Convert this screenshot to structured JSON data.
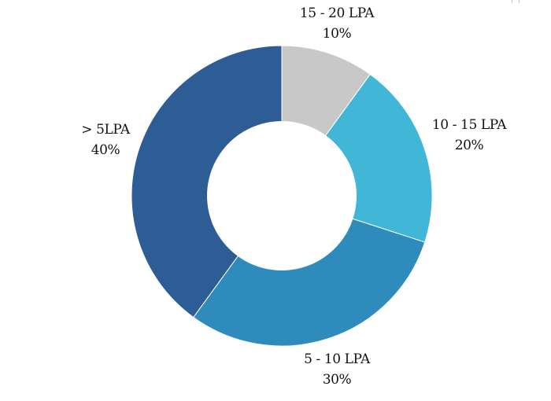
{
  "chart_data": {
    "type": "pie",
    "variant": "donut",
    "title": "",
    "slices": [
      {
        "label": "15 - 20 LPA",
        "value": 10,
        "display": "10%",
        "color": "#c8c8c8"
      },
      {
        "label": "10 - 15 LPA",
        "value": 20,
        "display": "20%",
        "color": "#41b6d6"
      },
      {
        "label": "5 - 10 LPA",
        "value": 30,
        "display": "30%",
        "color": "#2e8bbb"
      },
      {
        "label": "> 5LPA",
        "value": 40,
        "display": "40%",
        "color": "#2e5c94"
      }
    ],
    "legend": "none",
    "start": "top",
    "direction": "clockwise"
  }
}
